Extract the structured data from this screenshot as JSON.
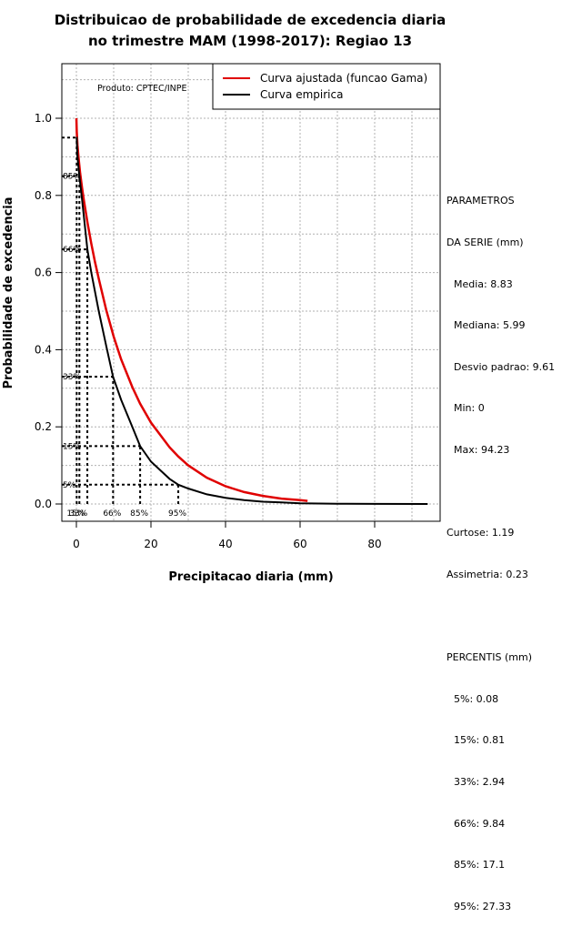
{
  "chart_data": {
    "type": "line",
    "title_lines": [
      "Distribuicao de probabilidade de excedencia diaria",
      "no trimestre MAM (1998-2017): Regiao 13"
    ],
    "xlabel": "Precipitacao diaria (mm)",
    "ylabel": "Probabilidade de excedencia",
    "xlim": [
      -5,
      98
    ],
    "ylim": [
      -0.04,
      1.14
    ],
    "x_ticks": [
      0,
      20,
      40,
      60,
      80
    ],
    "x_tick_labels": [
      "0",
      "20",
      "40",
      "60",
      "80"
    ],
    "y_ticks": [
      0.0,
      0.2,
      0.4,
      0.6,
      0.8,
      1.0
    ],
    "y_tick_labels": [
      "0.0",
      "0.2",
      "0.4",
      "0.6",
      "0.8",
      "1.0"
    ],
    "grid": true,
    "producer": "Produto: CPTEC/INPE",
    "series": [
      {
        "name": "Curva ajustada (funcao Gama)",
        "color": "#e00000",
        "x": [
          0,
          0.1,
          0.3,
          0.6,
          1,
          1.5,
          2,
          3,
          4,
          5,
          6,
          8,
          10,
          12,
          15,
          17.1,
          20,
          25,
          27.33,
          30,
          35,
          40,
          45,
          50,
          55,
          60,
          62
        ],
        "y": [
          1.0,
          0.965,
          0.93,
          0.895,
          0.858,
          0.82,
          0.788,
          0.728,
          0.675,
          0.627,
          0.584,
          0.503,
          0.434,
          0.375,
          0.303,
          0.26,
          0.211,
          0.147,
          0.123,
          0.1,
          0.068,
          0.046,
          0.031,
          0.021,
          0.014,
          0.01,
          0.008
        ]
      },
      {
        "name": "Curva empirica",
        "color": "#000000",
        "x": [
          0,
          0.08,
          0.3,
          0.81,
          1.5,
          2.94,
          4,
          6,
          8,
          9.84,
          12,
          15,
          17.1,
          20,
          25,
          27.33,
          30,
          35,
          40,
          45,
          50,
          55,
          60,
          70,
          80,
          94.23
        ],
        "y": [
          0.95,
          0.95,
          0.9,
          0.85,
          0.79,
          0.66,
          0.6,
          0.5,
          0.41,
          0.33,
          0.27,
          0.2,
          0.15,
          0.11,
          0.065,
          0.05,
          0.04,
          0.025,
          0.016,
          0.01,
          0.006,
          0.004,
          0.002,
          0.0008,
          0.0003,
          0.0
        ]
      }
    ],
    "percentile_markers": [
      {
        "label": "5%",
        "x": 0.08,
        "y": 0.95,
        "xlabel": "15%",
        "ylabel": ""
      },
      {
        "label": "15%",
        "x": 0.81,
        "y": 0.85,
        "xlabel": "33%",
        "ylabel": "85%"
      },
      {
        "label": "33%",
        "x": 2.94,
        "y": 0.66,
        "xlabel": "",
        "ylabel": "66%"
      },
      {
        "label": "66%",
        "x": 9.84,
        "y": 0.33,
        "xlabel": "66%",
        "ylabel": "33%"
      },
      {
        "label": "85%",
        "x": 17.1,
        "y": 0.15,
        "xlabel": "85%",
        "ylabel": "15%"
      },
      {
        "label": "95%",
        "x": 27.33,
        "y": 0.05,
        "xlabel": "95%",
        "ylabel": "5%"
      }
    ]
  },
  "stats": {
    "title_1": "PARAMETROS",
    "title_2": "DA SERIE (mm)",
    "media": "Media: 8.83",
    "mediana": "Mediana: 5.99",
    "desvio": "Desvio padrao: 9.61",
    "min": "Min: 0",
    "max": "Max: 94.23",
    "curtose": "Curtose: 1.19",
    "assimetria": "Assimetria: 0.23",
    "perc_title": "PERCENTIS (mm)",
    "p5": "5%: 0.08",
    "p15": "15%: 0.81",
    "p33": "33%: 2.94",
    "p66": "66%: 9.84",
    "p85": "85%: 17.1",
    "p95": "95%: 27.33"
  },
  "colors": {
    "fitted": "#e00000",
    "empirical": "#000000",
    "grid": "#b0b0b0"
  }
}
